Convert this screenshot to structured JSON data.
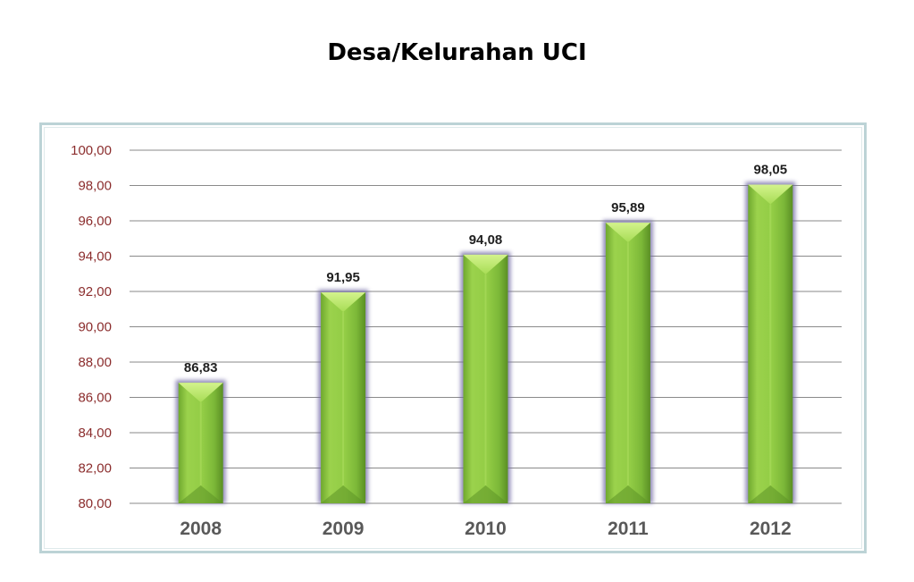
{
  "title": "Desa/Kelurahan UCI",
  "colors": {
    "bar_fill": "#8cc43f",
    "bar_light": "#bde86e",
    "bar_dark": "#5d9426",
    "bar_glow": "#6f67a3",
    "ytick": "#8b2d2d",
    "grid": "#8a8a8a"
  },
  "chart_data": {
    "type": "bar",
    "title": "Desa/Kelurahan UCI",
    "categories": [
      "2008",
      "2009",
      "2010",
      "2011",
      "2012"
    ],
    "values": [
      86.83,
      91.95,
      94.08,
      95.89,
      98.05
    ],
    "value_labels": [
      "86,83",
      "91,95",
      "94,08",
      "95,89",
      "98,05"
    ],
    "ylim": [
      80,
      100
    ],
    "yticks": [
      80,
      82,
      84,
      86,
      88,
      90,
      92,
      94,
      96,
      98,
      100
    ],
    "ytick_labels": [
      "80,00",
      "82,00",
      "84,00",
      "86,00",
      "88,00",
      "90,00",
      "92,00",
      "94,00",
      "96,00",
      "98,00",
      "100,00"
    ],
    "xlabel": "",
    "ylabel": "",
    "grid": true,
    "legend": "none"
  }
}
